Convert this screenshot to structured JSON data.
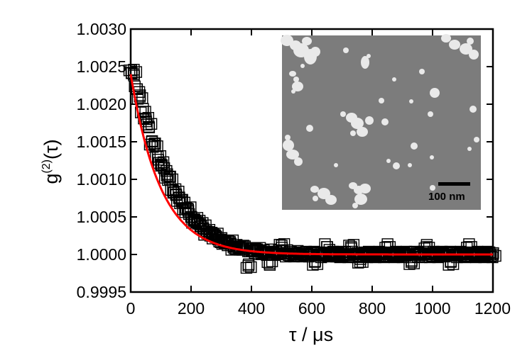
{
  "chart_data": {
    "type": "scatter",
    "xlabel": "τ / μs",
    "ylabel_base": "g",
    "ylabel_sup": "(2)",
    "ylabel_arg": "(τ)",
    "xlim": [
      0,
      1200
    ],
    "ylim": [
      0.9995,
      1.003
    ],
    "x_ticks": [
      0,
      200,
      400,
      600,
      800,
      1000,
      1200
    ],
    "x_tick_labels": [
      "0",
      "200",
      "400",
      "600",
      "800",
      "1000",
      "1200"
    ],
    "y_ticks": [
      0.9995,
      1.0,
      1.0005,
      1.001,
      1.0015,
      1.002,
      1.0025,
      1.003
    ],
    "y_tick_labels": [
      "0.9995",
      "1.0000",
      "1.0005",
      "1.0010",
      "1.0015",
      "1.0020",
      "1.0025",
      "1.0030"
    ],
    "grid": false,
    "series": [
      {
        "kind": "scatter",
        "marker": "open-square",
        "color": "#000000",
        "x": [
          2,
          10,
          20,
          30,
          40,
          50,
          60,
          70,
          80,
          90,
          100,
          110,
          120,
          130,
          140,
          150,
          160,
          170,
          180,
          190,
          200,
          210,
          220,
          230,
          240,
          250,
          260,
          270,
          280,
          290,
          300,
          310,
          320,
          330,
          340,
          350,
          360,
          370,
          380,
          390,
          400,
          410,
          420,
          430,
          440,
          450,
          460,
          470,
          480,
          490,
          500,
          510,
          520,
          530,
          540,
          550,
          560,
          570,
          580,
          590,
          600,
          610,
          620,
          630,
          640,
          650,
          660,
          670,
          680,
          690,
          700,
          710,
          720,
          730,
          740,
          750,
          760,
          770,
          780,
          790,
          800,
          810,
          820,
          830,
          840,
          850,
          860,
          870,
          880,
          890,
          900,
          910,
          920,
          930,
          940,
          950,
          960,
          970,
          980,
          990,
          1000,
          1010,
          1020,
          1030,
          1040,
          1050,
          1060,
          1070,
          1080,
          1090,
          1100,
          1110,
          1120,
          1130,
          1140,
          1150,
          1160,
          1170,
          1180,
          1190,
          1200
        ],
        "y": [
          1.00245,
          1.0024,
          1.0022,
          1.0021,
          1.0019,
          1.0018,
          1.0017,
          1.0015,
          1.00145,
          1.0013,
          1.0012,
          1.00115,
          1.00105,
          1.001,
          1.00085,
          1.0008,
          1.00075,
          1.0007,
          1.0006,
          1.0006,
          1.0005,
          1.00045,
          1.00045,
          1.0004,
          1.00035,
          1.0003,
          1.0003,
          1.00025,
          1.00025,
          1.0002,
          1.0002,
          1.00015,
          1.00015,
          1.00015,
          1.0001,
          1.0001,
          1.0001,
          1.00008,
          1.00008,
          0.99985,
          1.00005,
          1.00005,
          1.00005,
          1.00004,
          1.00003,
          1.00003,
          0.99988,
          1.00003,
          1.00002,
          1.00002,
          1.00012,
          1.00002,
          1.00001,
          1.00001,
          1.00001,
          1.0,
          1.00001,
          1.00001,
          1.0,
          1.0,
          1.0,
          0.9999,
          1.0,
          1.0,
          1.0,
          1.0001,
          1.0,
          1.0,
          1.0,
          1.0,
          1.0,
          1.0,
          1.0,
          1.0001,
          1.0,
          1.0,
          0.9999,
          1.0,
          1.0,
          1.0,
          1.0,
          1.0,
          1.0,
          1.0,
          1.0,
          1.0001,
          1.0,
          1.0,
          1.0,
          1.0,
          1.0,
          1.0,
          1.0,
          0.9999,
          1.0,
          1.0,
          1.0,
          1.0,
          1.0001,
          1.0,
          1.0,
          1.0,
          1.0,
          1.0,
          1.0,
          1.0,
          0.9999,
          1.0,
          1.0,
          1.0,
          1.0,
          1.0,
          1.0001,
          1.0,
          1.0,
          1.0,
          1.0,
          1.0,
          1.0,
          1.0,
          1.0
        ]
      },
      {
        "kind": "line",
        "color": "#ff0000",
        "function": "1 + 0.0024*exp(-x/100)"
      }
    ],
    "inset": {
      "type": "sem-micrograph",
      "scale_bar_label": "100 nm",
      "background_color": "#7c7c7c",
      "particle_color": "#e9e9e9"
    }
  }
}
